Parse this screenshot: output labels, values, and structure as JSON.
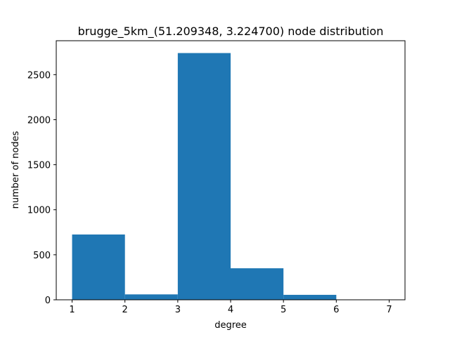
{
  "chart_data": {
    "type": "bar",
    "title": "brugge_5km_(51.209348, 3.224700) node distribution",
    "xlabel": "degree",
    "ylabel": "number of nodes",
    "bins": [
      {
        "start": 1,
        "end": 2,
        "value": 725
      },
      {
        "start": 2,
        "end": 3,
        "value": 60
      },
      {
        "start": 3,
        "end": 4,
        "value": 2740
      },
      {
        "start": 4,
        "end": 5,
        "value": 350
      },
      {
        "start": 5,
        "end": 6,
        "value": 55
      },
      {
        "start": 6,
        "end": 7,
        "value": 0
      }
    ],
    "xlim": [
      0.7,
      7.3
    ],
    "ylim": [
      0,
      2877
    ],
    "xticks": [
      1,
      2,
      3,
      4,
      5,
      6,
      7
    ],
    "yticks": [
      0,
      500,
      1000,
      1500,
      2000,
      2500
    ],
    "bar_color": "#1f77b4",
    "grid": false
  }
}
